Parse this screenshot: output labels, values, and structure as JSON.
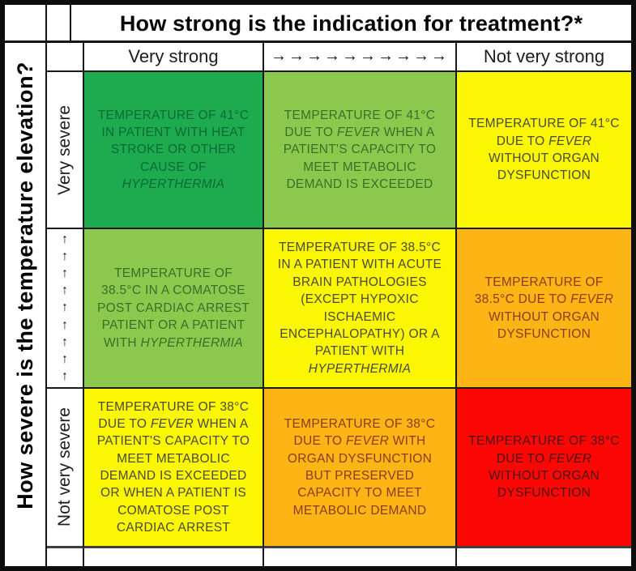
{
  "title": "How strong is the indication for treatment?*",
  "left_axis": "How severe is the temperature elevation?",
  "columns": {
    "strong_label": "Very strong",
    "gradient_arrows": "→→→→→→→→→→",
    "weak_label": "Not very strong"
  },
  "colors": {
    "dark_green": "#1EAB4F",
    "light_green": "#8CC84D",
    "yellow": "#FBF602",
    "orange": "#FCB515",
    "red": "#FB0706",
    "border": "#1a1a1a"
  },
  "matrix": {
    "rows": [
      {
        "label": "Very severe",
        "label_type": "text",
        "cells": [
          {
            "bg": "#1EAB4F",
            "fg": "#0C6A33",
            "segments": [
              {
                "text": "TEMPERATURE OF 41°C IN PATIENT WITH HEAT STROKE OR OTHER CAUSE OF "
              },
              {
                "text": "HYPERTHERMIA",
                "italic": true
              }
            ]
          },
          {
            "bg": "#8CC84D",
            "fg": "#35722A",
            "segments": [
              {
                "text": "TEMPERATURE OF 41°C DUE TO "
              },
              {
                "text": "FEVER",
                "italic": true
              },
              {
                "text": " WHEN A PATIENT'S CAPACITY TO MEET METABOLIC DEMAND IS EXCEEDED"
              }
            ]
          },
          {
            "bg": "#FBF602",
            "fg": "#4A4A3A",
            "segments": [
              {
                "text": "TEMPERATURE OF 41°C DUE TO "
              },
              {
                "text": "FEVER",
                "italic": true
              },
              {
                "text": " WITHOUT ORGAN DYSFUNCTION"
              }
            ]
          }
        ]
      },
      {
        "label": "↑↑↑↑↑↑↑↑↑",
        "label_type": "arrows",
        "cells": [
          {
            "bg": "#8CC84D",
            "fg": "#35722A",
            "segments": [
              {
                "text": "TEMPERATURE OF 38.5°C IN A COMATOSE POST CARDIAC ARREST PATIENT OR A PATIENT WITH "
              },
              {
                "text": "HYPERTHERMIA",
                "italic": true
              }
            ]
          },
          {
            "bg": "#FBF602",
            "fg": "#4A4A3A",
            "segments": [
              {
                "text": "TEMPERATURE OF 38.5°C IN A PATIENT WITH ACUTE BRAIN PATHOLOGIES (EXCEPT HYPOXIC ISCHAEMIC ENCEPHALOPATHY) OR A PATIENT WITH "
              },
              {
                "text": "HYPERTHERMIA",
                "italic": true
              }
            ]
          },
          {
            "bg": "#FCB515",
            "fg": "#8D3A1B",
            "segments": [
              {
                "text": "TEMPERATURE OF 38.5°C DUE TO "
              },
              {
                "text": "FEVER",
                "italic": true
              },
              {
                "text": " WITHOUT ORGAN DYSFUNCTION"
              }
            ]
          }
        ]
      },
      {
        "label": "Not very severe",
        "label_type": "text",
        "cells": [
          {
            "bg": "#FBF602",
            "fg": "#4A4A3A",
            "segments": [
              {
                "text": "TEMPERATURE OF 38°C DUE TO "
              },
              {
                "text": "FEVER",
                "italic": true
              },
              {
                "text": " WHEN A PATIENT'S CAPACITY TO MEET METABOLIC DEMAND IS EXCEEDED OR WHEN A PATIENT IS COMATOSE POST CARDIAC ARREST"
              }
            ]
          },
          {
            "bg": "#FCB515",
            "fg": "#8D3A1B",
            "segments": [
              {
                "text": "TEMPERATURE OF 38°C DUE TO "
              },
              {
                "text": "FEVER",
                "italic": true
              },
              {
                "text": " WITH ORGAN DYSFUNCTION BUT PRESERVED CAPACITY TO MEET METABOLIC DEMAND"
              }
            ]
          },
          {
            "bg": "#FB0706",
            "fg": "#4A1210",
            "segments": [
              {
                "text": "TEMPERATURE OF 38°C DUE TO "
              },
              {
                "text": "FEVER",
                "italic": true
              },
              {
                "text": " WITHOUT ORGAN DYSFUNCTION"
              }
            ]
          }
        ]
      }
    ]
  }
}
